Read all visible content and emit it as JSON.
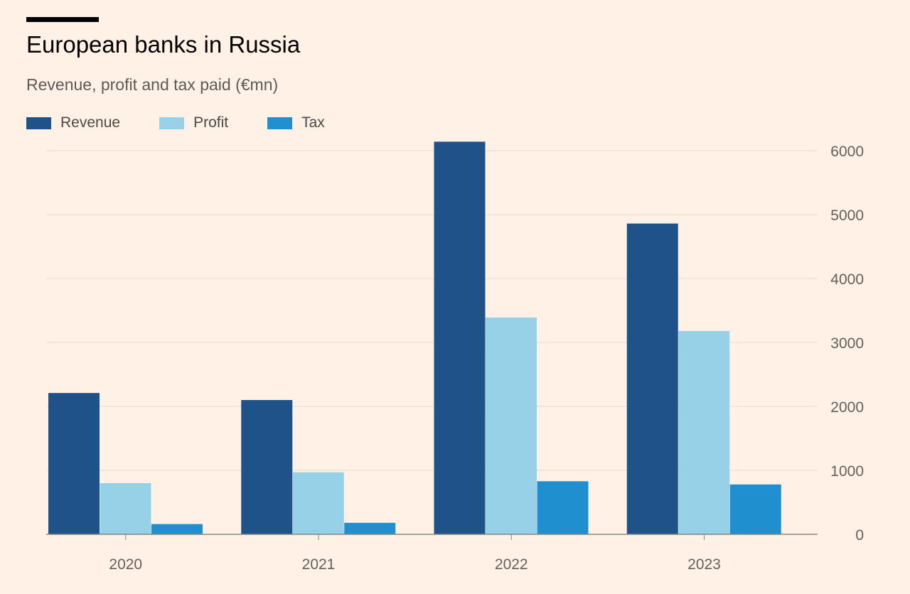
{
  "chart_data": {
    "type": "bar",
    "title": "European banks in Russia",
    "subtitle": "Revenue, profit and tax paid (€mn)",
    "categories": [
      "2020",
      "2021",
      "2022",
      "2023"
    ],
    "series": [
      {
        "name": "Revenue",
        "color": "#1f5289",
        "values": [
          2210,
          2100,
          6140,
          4860
        ]
      },
      {
        "name": "Profit",
        "color": "#96d1e8",
        "values": [
          800,
          970,
          3390,
          3180
        ]
      },
      {
        "name": "Tax",
        "color": "#1f8fcf",
        "values": [
          160,
          180,
          830,
          780
        ]
      }
    ],
    "y_ticks": [
      "0",
      "1000",
      "2000",
      "3000",
      "4000",
      "5000",
      "6000"
    ],
    "ylim": [
      0,
      6000
    ],
    "y_axis_side": "right",
    "grid": true,
    "legend_position": "top-left"
  }
}
